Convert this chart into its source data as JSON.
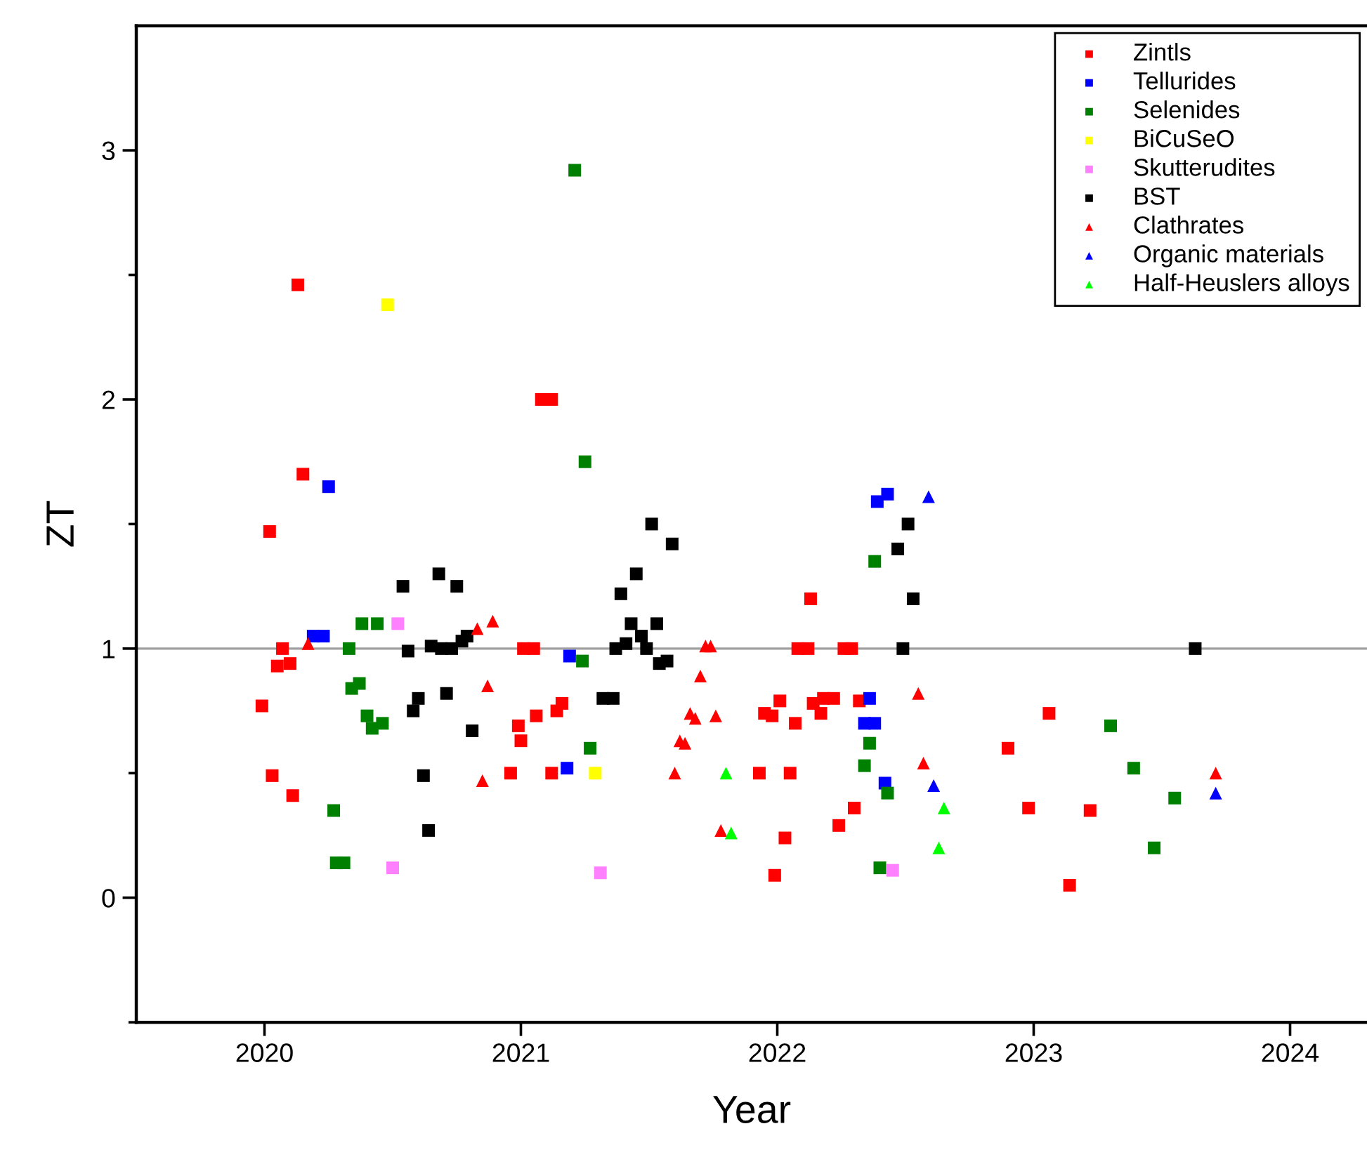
{
  "chart_data": {
    "type": "scatter",
    "xlabel": "Year",
    "ylabel": "ZT",
    "xlim": [
      2019.5,
      2024.3
    ],
    "xticks": [
      2020,
      2021,
      2022,
      2023,
      2024
    ],
    "ylim": [
      -0.5,
      3.5
    ],
    "yticks": [
      {
        "value": -0.5,
        "label": null
      },
      0,
      {
        "value": 0.5,
        "label": null
      },
      1,
      {
        "value": 1.5,
        "label": null
      },
      2,
      {
        "value": 2.5,
        "label": null
      },
      3
    ],
    "grid": false,
    "legend": "top right",
    "ref_lines": [
      {
        "axis": "y",
        "value": 1,
        "color": "#a0a0a0"
      }
    ],
    "series": [
      {
        "name": "Zintls",
        "color": "#ff0000",
        "marker": "square",
        "x": [
          2019.99,
          2020.02,
          2020.03,
          2020.05,
          2020.07,
          2020.1,
          2020.11,
          2020.13,
          2020.15,
          2020.96,
          2020.99,
          2021.0,
          2021.01,
          2021.05,
          2021.06,
          2021.08,
          2021.12,
          2021.12,
          2021.14,
          2021.16,
          2021.93,
          2021.95,
          2021.98,
          2021.99,
          2022.01,
          2022.03,
          2022.05,
          2022.07,
          2022.08,
          2022.12,
          2022.13,
          2022.14,
          2022.17,
          2022.18,
          2022.22,
          2022.24,
          2022.26,
          2022.29,
          2022.3,
          2022.32,
          2022.9,
          2022.98,
          2023.06,
          2023.14,
          2023.22
        ],
        "values": [
          0.77,
          1.47,
          0.49,
          0.93,
          1.0,
          0.94,
          0.41,
          2.46,
          1.7,
          0.5,
          0.69,
          0.63,
          1.0,
          1.0,
          0.73,
          2.0,
          2.0,
          0.5,
          0.75,
          0.78,
          0.5,
          0.74,
          0.73,
          0.09,
          0.79,
          0.24,
          0.5,
          0.7,
          1.0,
          1.0,
          1.2,
          0.78,
          0.74,
          0.8,
          0.8,
          0.29,
          1.0,
          1.0,
          0.36,
          0.79,
          0.6,
          0.36,
          0.74,
          0.05,
          0.35
        ]
      },
      {
        "name": "Tellurides",
        "color": "#0000ff",
        "marker": "square",
        "x": [
          2020.19,
          2020.23,
          2020.25,
          2021.18,
          2021.19,
          2022.34,
          2022.36,
          2022.38,
          2022.39,
          2022.42,
          2022.43
        ],
        "values": [
          1.05,
          1.05,
          1.65,
          0.52,
          0.97,
          0.7,
          0.8,
          0.7,
          1.59,
          0.46,
          1.62
        ]
      },
      {
        "name": "Selenides",
        "color": "#008000",
        "marker": "square",
        "x": [
          2020.27,
          2020.28,
          2020.31,
          2020.33,
          2020.34,
          2020.37,
          2020.38,
          2020.4,
          2020.42,
          2020.44,
          2020.46,
          2021.21,
          2021.24,
          2021.25,
          2021.27,
          2022.34,
          2022.36,
          2022.38,
          2022.4,
          2022.43,
          2023.3,
          2023.39,
          2023.47,
          2023.55
        ],
        "values": [
          0.35,
          0.14,
          0.14,
          1.0,
          0.84,
          0.86,
          1.1,
          0.73,
          0.68,
          1.1,
          0.7,
          2.92,
          0.95,
          1.75,
          0.6,
          0.53,
          0.62,
          1.35,
          0.12,
          0.42,
          0.69,
          0.52,
          0.2,
          0.4
        ]
      },
      {
        "name": "BiCuSeO",
        "color": "#ffff00",
        "marker": "square",
        "x": [
          2020.48,
          2021.29
        ],
        "values": [
          2.38,
          0.5
        ]
      },
      {
        "name": "Skutterudites",
        "color": "#ff80ff",
        "marker": "square",
        "x": [
          2020.5,
          2020.52,
          2021.31,
          2022.45
        ],
        "values": [
          0.12,
          1.1,
          0.1,
          0.11
        ]
      },
      {
        "name": "BST",
        "color": "#000000",
        "marker": "square",
        "x": [
          2020.54,
          2020.56,
          2020.58,
          2020.6,
          2020.62,
          2020.64,
          2020.65,
          2020.68,
          2020.69,
          2020.71,
          2020.73,
          2020.75,
          2020.77,
          2020.79,
          2020.81,
          2021.32,
          2021.36,
          2021.37,
          2021.39,
          2021.41,
          2021.43,
          2021.45,
          2021.47,
          2021.49,
          2021.51,
          2021.53,
          2021.54,
          2021.57,
          2021.59,
          2022.47,
          2022.49,
          2022.51,
          2022.53,
          2023.63
        ],
        "values": [
          1.25,
          0.99,
          0.75,
          0.8,
          0.49,
          0.27,
          1.01,
          1.3,
          1.0,
          0.82,
          1.0,
          1.25,
          1.03,
          1.05,
          0.67,
          0.8,
          0.8,
          1.0,
          1.22,
          1.02,
          1.1,
          1.3,
          1.05,
          1.0,
          1.5,
          1.1,
          0.94,
          0.95,
          1.42,
          1.4,
          1.0,
          1.5,
          1.2,
          1.0
        ]
      },
      {
        "name": "Clathrates",
        "color": "#ff0000",
        "marker": "triangle",
        "x": [
          2020.17,
          2020.83,
          2020.85,
          2020.87,
          2020.89,
          2021.6,
          2021.62,
          2021.64,
          2021.66,
          2021.68,
          2021.7,
          2021.72,
          2021.74,
          2021.76,
          2021.78,
          2022.55,
          2022.57,
          2023.71
        ],
        "values": [
          1.02,
          1.08,
          0.47,
          0.85,
          1.11,
          0.5,
          0.63,
          0.62,
          0.74,
          0.72,
          0.89,
          1.01,
          1.01,
          0.73,
          0.27,
          0.82,
          0.54,
          0.5
        ]
      },
      {
        "name": "Organic materials",
        "color": "#0000ff",
        "marker": "triangle",
        "x": [
          2022.59,
          2022.61,
          2023.71
        ],
        "values": [
          1.61,
          0.45,
          0.42
        ]
      },
      {
        "name": "Half-Heuslers alloys",
        "color": "#00ff00",
        "marker": "triangle",
        "x": [
          2021.8,
          2021.82,
          2022.63,
          2022.65
        ],
        "values": [
          0.5,
          0.26,
          0.2,
          0.36
        ]
      }
    ]
  }
}
